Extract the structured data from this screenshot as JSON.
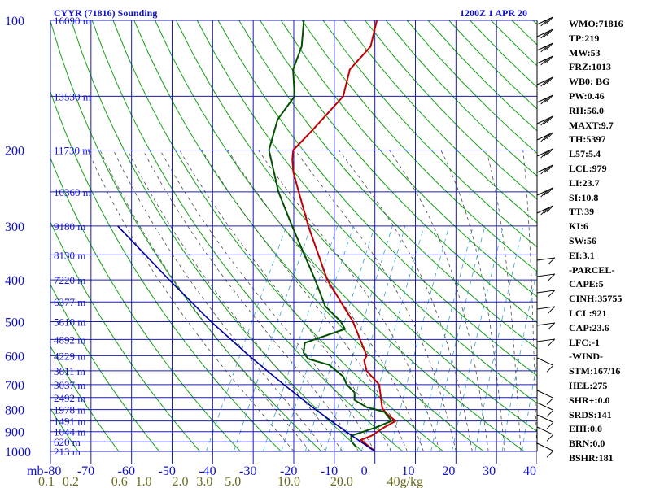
{
  "chart_data": {
    "type": "line",
    "title": "CYYR (71816) Sounding",
    "time_label": "1200Z  1 APR 20",
    "pressure_axis": {
      "ticks": [
        100,
        200,
        300,
        400,
        500,
        600,
        700,
        800,
        900,
        1000
      ],
      "range": [
        100,
        1000
      ],
      "scale": "log",
      "unit_label": "mb"
    },
    "temperature_axis": {
      "ticks": [
        -80,
        -70,
        -60,
        -50,
        -40,
        -30,
        -20,
        -10,
        0,
        10,
        20,
        30,
        40
      ],
      "range": [
        -80,
        40
      ]
    },
    "mixing_ratio_labels": [
      {
        "text": "0.1",
        "t": -81
      },
      {
        "text": "0.2",
        "t": -75
      },
      {
        "text": "0.6",
        "t": -63
      },
      {
        "text": "1.0",
        "t": -57
      },
      {
        "text": "2.0",
        "t": -48
      },
      {
        "text": "3.0",
        "t": -42
      },
      {
        "text": "5.0",
        "t": -35
      },
      {
        "text": "10.0",
        "t": -22
      },
      {
        "text": "20.0",
        "t": -9
      },
      {
        "text": "40g/kg",
        "t": 5
      }
    ],
    "height_labels": [
      {
        "p": 100,
        "text": "16090 m"
      },
      {
        "p": 150,
        "text": "13530 m"
      },
      {
        "p": 200,
        "text": "11730 m"
      },
      {
        "p": 250,
        "text": "10360 m"
      },
      {
        "p": 300,
        "text": "9180 m"
      },
      {
        "p": 350,
        "text": "8130 m"
      },
      {
        "p": 400,
        "text": "7220 m"
      },
      {
        "p": 450,
        "text": "6377 m"
      },
      {
        "p": 500,
        "text": "5610 m"
      },
      {
        "p": 550,
        "text": "4892 m"
      },
      {
        "p": 600,
        "text": "4229 m"
      },
      {
        "p": 650,
        "text": "3611 m"
      },
      {
        "p": 700,
        "text": "3037 m"
      },
      {
        "p": 750,
        "text": "2492 m"
      },
      {
        "p": 800,
        "text": "1978 m"
      },
      {
        "p": 850,
        "text": "1491 m"
      },
      {
        "p": 900,
        "text": "1044 m"
      },
      {
        "p": 950,
        "text": "620 m"
      },
      {
        "p": 1000,
        "text": "213 m"
      }
    ],
    "series": [
      {
        "color": "#c00000",
        "points": [
          {
            "p": 1000,
            "t": 0
          },
          {
            "p": 975,
            "t": -2
          },
          {
            "p": 940,
            "t": -5
          },
          {
            "p": 920,
            "t": -3
          },
          {
            "p": 880,
            "t": -1
          },
          {
            "p": 850,
            "t": 1
          },
          {
            "p": 820,
            "t": -2
          },
          {
            "p": 795,
            "t": -4
          },
          {
            "p": 770,
            "t": -5
          },
          {
            "p": 700,
            "t": -8
          },
          {
            "p": 650,
            "t": -13
          },
          {
            "p": 615,
            "t": -15
          },
          {
            "p": 600,
            "t": -15
          },
          {
            "p": 500,
            "t": -23
          },
          {
            "p": 400,
            "t": -35
          },
          {
            "p": 300,
            "t": -47
          },
          {
            "p": 250,
            "t": -54
          },
          {
            "p": 225,
            "t": -58
          },
          {
            "p": 210,
            "t": -60
          },
          {
            "p": 200,
            "t": -61
          },
          {
            "p": 180,
            "t": -59
          },
          {
            "p": 150,
            "t": -56
          },
          {
            "p": 130,
            "t": -58
          },
          {
            "p": 115,
            "t": -56
          },
          {
            "p": 100,
            "t": -58
          }
        ]
      },
      {
        "color": "#005000",
        "points": [
          {
            "p": 980,
            "t": -5
          },
          {
            "p": 950,
            "t": -7
          },
          {
            "p": 920,
            "t": -8
          },
          {
            "p": 880,
            "t": -3
          },
          {
            "p": 850,
            "t": 0
          },
          {
            "p": 810,
            "t": -3
          },
          {
            "p": 790,
            "t": -8
          },
          {
            "p": 760,
            "t": -12
          },
          {
            "p": 730,
            "t": -13
          },
          {
            "p": 700,
            "t": -16
          },
          {
            "p": 670,
            "t": -18
          },
          {
            "p": 630,
            "t": -23
          },
          {
            "p": 610,
            "t": -29
          },
          {
            "p": 590,
            "t": -31
          },
          {
            "p": 560,
            "t": -32
          },
          {
            "p": 520,
            "t": -24
          },
          {
            "p": 500,
            "t": -26
          },
          {
            "p": 460,
            "t": -32
          },
          {
            "p": 400,
            "t": -38
          },
          {
            "p": 300,
            "t": -51
          },
          {
            "p": 250,
            "t": -59
          },
          {
            "p": 230,
            "t": -62
          },
          {
            "p": 200,
            "t": -67
          },
          {
            "p": 170,
            "t": -69
          },
          {
            "p": 150,
            "t": -68
          },
          {
            "p": 130,
            "t": -72
          },
          {
            "p": 115,
            "t": -73
          },
          {
            "p": 100,
            "t": -76
          }
        ]
      },
      {
        "color": "#0000a0",
        "points": [
          {
            "p": 1000,
            "t": 0
          },
          {
            "p": 900,
            "t": -9.8
          },
          {
            "p": 800,
            "t": -20.3
          },
          {
            "p": 700,
            "t": -31.5
          },
          {
            "p": 600,
            "t": -44
          },
          {
            "p": 500,
            "t": -58
          },
          {
            "p": 400,
            "t": -74
          },
          {
            "p": 300,
            "t": -94
          }
        ]
      }
    ]
  },
  "indices": [
    "WMO:71816",
    "TP:219",
    "MW:53",
    "FRZ:1013",
    "WB0: BG",
    "PW:0.46",
    "RH:56.0",
    "MAXT:9.7",
    "TH:5397",
    "L57:5.4",
    "LCL:979",
    "LI:23.7",
    "SI:10.8",
    "TT:39",
    "KI:6",
    "SW:56",
    "EI:3.1",
    "-PARCEL-",
    "CAPE:5",
    "CINH:35755",
    "LCL:921",
    "CAP:23.6",
    "LFC:-1",
    "-WIND-",
    "STM:167/16",
    "HEL:275",
    "SHR+:0.0",
    "SRDS:141",
    "EHI:0.0",
    "BRN:0.0",
    "BSHR:181"
  ],
  "colors": {
    "grid": "#1c1cb0",
    "dry_adiabat": "#14a014",
    "moist_adiabat": "#4a4a4a",
    "mixing_ratio": "#3aa0c8",
    "temperature": "#c00000",
    "dewpoint": "#005000",
    "parcel": "#0000a0",
    "text_blue": "#1010d0",
    "text_olive": "#6a6a1a"
  }
}
